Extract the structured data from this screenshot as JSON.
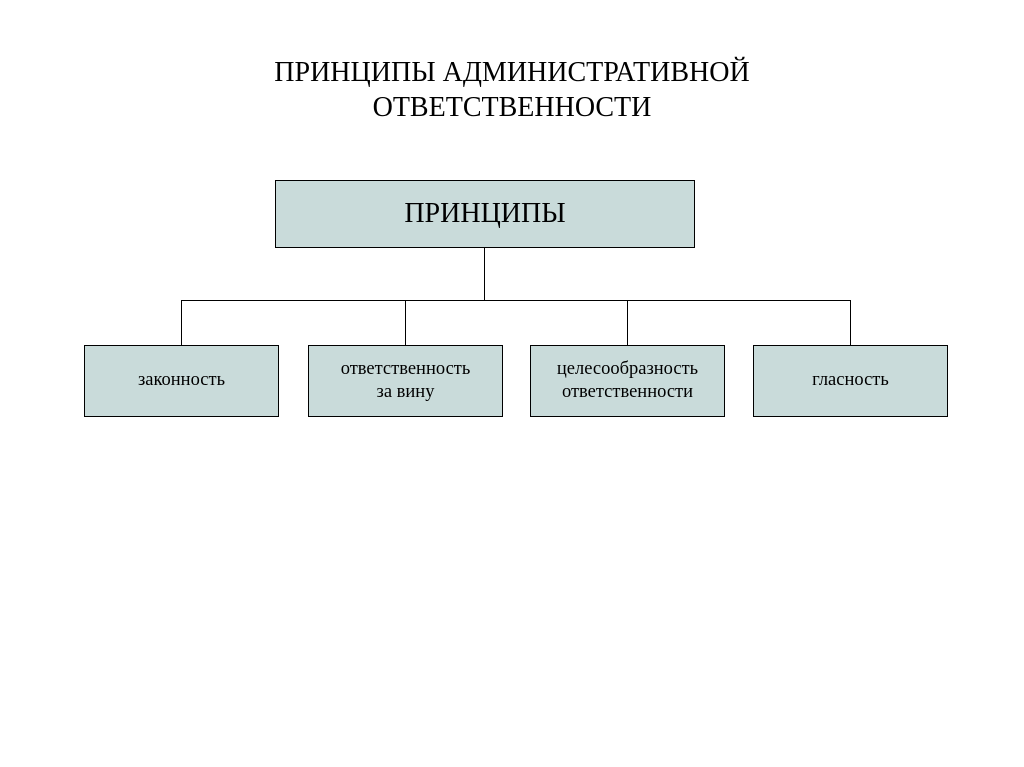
{
  "diagram": {
    "type": "tree",
    "title_line1": "ПРИНЦИПЫ АДМИНИСТРАТИВНОЙ",
    "title_line2": "ОТВЕТСТВЕННОСТИ",
    "title_fontsize": 28,
    "title_color": "#000000",
    "background_color": "#ffffff",
    "box_fill": "#c9dbda",
    "box_border": "#000000",
    "line_color": "#000000",
    "root": {
      "label": "ПРИНЦИПЫ",
      "fontsize": 28
    },
    "children": [
      {
        "label": "законность"
      },
      {
        "label": "ответственность\nза вину"
      },
      {
        "label": "целесообразность\nответственности"
      },
      {
        "label": "гласность"
      }
    ],
    "child_fontsize": 18.5
  }
}
